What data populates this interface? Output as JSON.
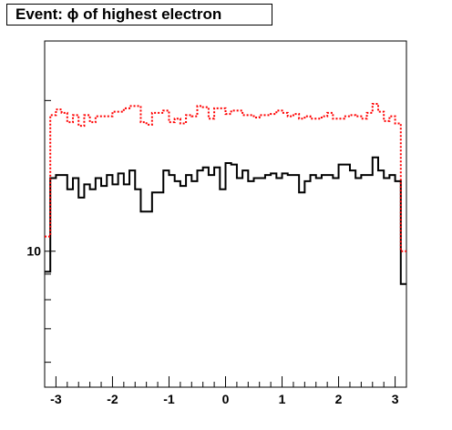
{
  "chart_data": {
    "type": "histogram",
    "title": "Event: ϕ of highest electron",
    "xlim": [
      -3.2,
      3.2
    ],
    "ylim_log": [
      5.35,
      26.3
    ],
    "y_scale": "log",
    "grid": false,
    "bins": 64,
    "x_ticks": [
      -3,
      -2,
      -1,
      0,
      1,
      2,
      3
    ],
    "x_tick_labels": [
      "-3",
      "-2",
      "-1",
      "0",
      "1",
      "2",
      "3"
    ],
    "y_ticks": [
      10
    ],
    "y_tick_labels": [
      "10"
    ],
    "series": [
      {
        "style": "solid",
        "color": "#000000",
        "values": [
          9.1,
          14.0,
          14.2,
          14.2,
          13.3,
          14.0,
          12.8,
          13.6,
          13.3,
          14.0,
          13.5,
          14.2,
          13.6,
          14.3,
          13.6,
          14.5,
          13.3,
          12.0,
          12.0,
          13.1,
          13.1,
          14.5,
          14.2,
          13.8,
          13.5,
          14.2,
          13.8,
          14.5,
          14.7,
          14.2,
          14.7,
          13.3,
          15.0,
          14.9,
          14.0,
          14.5,
          13.8,
          14.0,
          14.0,
          14.2,
          14.3,
          14.0,
          14.3,
          14.2,
          14.2,
          13.1,
          13.8,
          14.2,
          14.0,
          14.2,
          14.2,
          14.0,
          14.9,
          14.9,
          14.5,
          14.0,
          14.2,
          14.2,
          15.4,
          14.5,
          14.0,
          14.2,
          13.8,
          8.6
        ]
      },
      {
        "style": "dotted",
        "color": "#ff0000",
        "values": [
          10.7,
          18.7,
          19.2,
          18.9,
          18.1,
          18.7,
          17.8,
          18.7,
          18.1,
          18.6,
          18.6,
          18.6,
          19.0,
          19.0,
          19.3,
          19.5,
          19.5,
          18.1,
          17.9,
          18.9,
          18.9,
          19.1,
          18.1,
          18.4,
          18.0,
          18.7,
          18.6,
          19.5,
          19.4,
          18.4,
          19.3,
          19.3,
          18.8,
          19.1,
          19.1,
          18.7,
          18.7,
          18.5,
          18.7,
          18.7,
          18.8,
          19.1,
          18.9,
          18.6,
          18.8,
          18.4,
          18.6,
          18.4,
          18.4,
          18.6,
          18.9,
          18.4,
          18.4,
          18.6,
          18.7,
          18.6,
          18.4,
          18.9,
          19.7,
          19.0,
          18.2,
          18.6,
          18.0,
          10.0
        ]
      }
    ]
  }
}
